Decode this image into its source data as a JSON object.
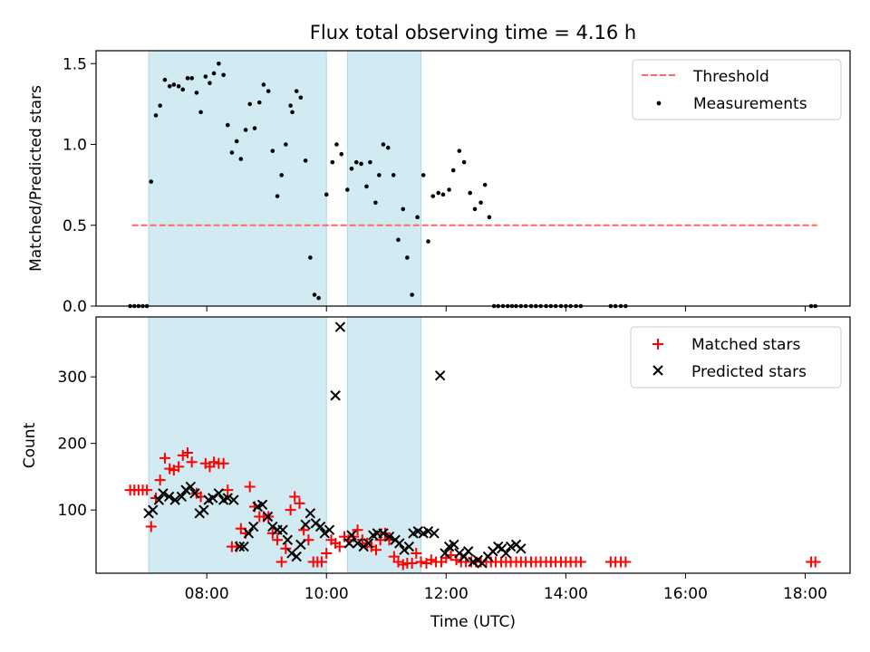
{
  "title": "Flux total observing time = 4.16 h",
  "colors": {
    "shade": "#add8e6",
    "threshold": "#ff6666",
    "matched": "#ff0000",
    "predicted": "#000000",
    "measurement": "#000000"
  },
  "chart_data": [
    {
      "type": "scatter",
      "ylabel": "Matched/Predicted stars",
      "xlim": [
        6.15,
        18.75
      ],
      "ylim": [
        0,
        1.58
      ],
      "yticks": [
        "0.0",
        "0.5",
        "1.0",
        "1.5"
      ],
      "grid": false,
      "legend": {
        "position": "top-right",
        "entries": [
          "Threshold",
          "Measurements"
        ]
      },
      "shaded_intervals": [
        [
          7.03,
          10.0
        ],
        [
          10.35,
          11.58
        ]
      ],
      "threshold": {
        "name": "Threshold",
        "y": 0.5,
        "x_range": [
          6.75,
          18.2
        ]
      },
      "series": [
        {
          "name": "Measurements",
          "x": [
            6.72,
            6.79,
            6.86,
            6.93,
            7.0,
            7.07,
            7.15,
            7.22,
            7.3,
            7.38,
            7.45,
            7.53,
            7.6,
            7.68,
            7.75,
            7.83,
            7.9,
            7.98,
            8.05,
            8.12,
            8.2,
            8.28,
            8.35,
            8.42,
            8.5,
            8.57,
            8.65,
            8.72,
            8.8,
            8.88,
            8.95,
            9.03,
            9.1,
            9.18,
            9.25,
            9.32,
            9.4,
            9.43,
            9.5,
            9.57,
            9.65,
            9.73,
            9.8,
            9.87,
            10.0,
            10.1,
            10.17,
            10.25,
            10.35,
            10.42,
            10.5,
            10.58,
            10.67,
            10.73,
            10.82,
            10.88,
            10.95,
            11.03,
            11.12,
            11.2,
            11.28,
            11.35,
            11.43,
            11.52,
            11.62,
            11.7,
            11.78,
            11.87,
            11.95,
            12.05,
            12.12,
            12.22,
            12.3,
            12.4,
            12.48,
            12.58,
            12.65,
            12.72,
            12.8,
            12.87,
            12.95,
            13.03,
            13.1,
            13.17,
            13.25,
            13.33,
            13.42,
            13.5,
            13.58,
            13.67,
            13.75,
            13.83,
            13.92,
            14.0,
            14.08,
            14.17,
            14.25,
            14.75,
            14.83,
            14.92,
            15.0,
            18.1,
            18.17
          ],
          "y": [
            0,
            0,
            0,
            0,
            0,
            0.77,
            1.18,
            1.24,
            1.4,
            1.36,
            1.37,
            1.36,
            1.34,
            1.41,
            1.41,
            1.32,
            1.2,
            1.42,
            1.38,
            1.44,
            1.5,
            1.43,
            1.12,
            0.95,
            1.02,
            0.91,
            1.09,
            1.25,
            1.1,
            1.26,
            1.37,
            1.33,
            0.96,
            0.68,
            0.81,
            1.0,
            1.24,
            1.2,
            1.33,
            1.29,
            0.9,
            0.3,
            0.07,
            0.05,
            0.69,
            0.89,
            1.0,
            0.94,
            0.72,
            0.85,
            0.89,
            0.88,
            0.74,
            0.89,
            0.64,
            0.81,
            1.0,
            0.98,
            0.81,
            0.41,
            0.6,
            0.3,
            0.07,
            0.55,
            0.81,
            0.4,
            0.68,
            0.7,
            0.69,
            0.72,
            0.84,
            0.96,
            0.89,
            0.7,
            0.6,
            0.64,
            0.75,
            0.55,
            0,
            0,
            0,
            0,
            0,
            0,
            0,
            0,
            0,
            0,
            0,
            0,
            0,
            0,
            0,
            0,
            0,
            0,
            0,
            0,
            0,
            0,
            0,
            0,
            0
          ]
        }
      ]
    },
    {
      "type": "scatter",
      "ylabel": "Count",
      "xlabel": "Time (UTC)",
      "xlim": [
        6.15,
        18.75
      ],
      "ylim": [
        5,
        390
      ],
      "yticks": [
        "100",
        "200",
        "300"
      ],
      "xticks": [
        "08:00",
        "10:00",
        "12:00",
        "14:00",
        "16:00",
        "18:00"
      ],
      "grid": false,
      "legend": {
        "position": "top-right",
        "entries": [
          "Matched stars",
          "Predicted stars"
        ]
      },
      "shaded_intervals": [
        [
          7.03,
          10.0
        ],
        [
          10.35,
          11.58
        ]
      ],
      "series": [
        {
          "name": "Matched stars",
          "x": [
            6.72,
            6.79,
            6.86,
            6.93,
            7.0,
            7.07,
            7.15,
            7.22,
            7.3,
            7.38,
            7.45,
            7.53,
            7.6,
            7.68,
            7.75,
            7.83,
            7.9,
            7.98,
            8.05,
            8.12,
            8.2,
            8.28,
            8.35,
            8.42,
            8.5,
            8.57,
            8.65,
            8.72,
            8.8,
            8.88,
            8.95,
            9.03,
            9.1,
            9.18,
            9.25,
            9.32,
            9.4,
            9.47,
            9.55,
            9.62,
            9.7,
            9.78,
            9.85,
            9.92,
            10.0,
            10.08,
            10.15,
            10.22,
            10.3,
            10.37,
            10.45,
            10.52,
            10.6,
            10.68,
            10.75,
            10.83,
            10.9,
            10.98,
            11.05,
            11.13,
            11.2,
            11.28,
            11.35,
            11.43,
            11.5,
            11.58,
            11.67,
            11.75,
            11.83,
            11.92,
            12.0,
            12.08,
            12.17,
            12.25,
            12.33,
            12.42,
            12.5,
            12.58,
            12.67,
            12.75,
            12.83,
            12.92,
            13.0,
            13.08,
            13.17,
            13.25,
            13.33,
            13.42,
            13.5,
            13.58,
            13.67,
            13.75,
            13.83,
            13.92,
            14.0,
            14.08,
            14.17,
            14.25,
            14.75,
            14.83,
            14.92,
            15.0,
            18.1,
            18.17
          ],
          "y": [
            130,
            130,
            130,
            130,
            130,
            75,
            118,
            145,
            178,
            162,
            160,
            165,
            182,
            186,
            172,
            125,
            120,
            170,
            165,
            172,
            170,
            170,
            130,
            45,
            45,
            72,
            65,
            135,
            105,
            90,
            90,
            90,
            65,
            55,
            22,
            42,
            100,
            120,
            110,
            70,
            55,
            22,
            22,
            22,
            35,
            55,
            50,
            45,
            60,
            55,
            60,
            70,
            55,
            50,
            45,
            40,
            55,
            65,
            55,
            30,
            22,
            18,
            20,
            20,
            35,
            22,
            20,
            25,
            22,
            22,
            28,
            32,
            25,
            22,
            22,
            22,
            22,
            22,
            22,
            22,
            22,
            22,
            22,
            22,
            22,
            22,
            22,
            22,
            22,
            22,
            22,
            22,
            22,
            22,
            22,
            22,
            22,
            22,
            22,
            22,
            22,
            22,
            22,
            22
          ]
        },
        {
          "name": "Predicted stars",
          "x": [
            7.03,
            7.1,
            7.2,
            7.27,
            7.37,
            7.47,
            7.58,
            7.65,
            7.73,
            7.8,
            7.88,
            7.95,
            8.03,
            8.1,
            8.2,
            8.28,
            8.35,
            8.45,
            8.55,
            8.62,
            8.7,
            8.78,
            8.85,
            8.93,
            9.02,
            9.1,
            9.18,
            9.27,
            9.35,
            9.42,
            9.5,
            9.57,
            9.65,
            9.73,
            9.82,
            9.9,
            9.97,
            10.05,
            10.15,
            10.23,
            10.38,
            10.42,
            10.52,
            10.62,
            10.7,
            10.78,
            10.85,
            10.95,
            11.05,
            11.15,
            11.22,
            11.3,
            11.38,
            11.45,
            11.53,
            11.62,
            11.7,
            11.8,
            11.9,
            11.98,
            12.05,
            12.13,
            12.22,
            12.3,
            12.37,
            12.45,
            12.53,
            12.6,
            12.7,
            12.78,
            12.87,
            12.93,
            13.0,
            13.08,
            13.17,
            13.25
          ],
          "y": [
            95,
            100,
            115,
            125,
            120,
            115,
            120,
            130,
            135,
            125,
            95,
            100,
            115,
            118,
            125,
            115,
            118,
            115,
            45,
            45,
            65,
            75,
            105,
            108,
            90,
            75,
            70,
            70,
            55,
            35,
            30,
            48,
            78,
            95,
            80,
            75,
            65,
            70,
            272,
            375,
            50,
            62,
            50,
            45,
            50,
            62,
            65,
            65,
            60,
            55,
            50,
            40,
            45,
            65,
            68,
            65,
            68,
            65,
            302,
            35,
            45,
            48,
            35,
            30,
            38,
            22,
            25,
            20,
            30,
            38,
            45,
            42,
            35,
            45,
            48,
            42
          ]
        }
      ]
    }
  ]
}
